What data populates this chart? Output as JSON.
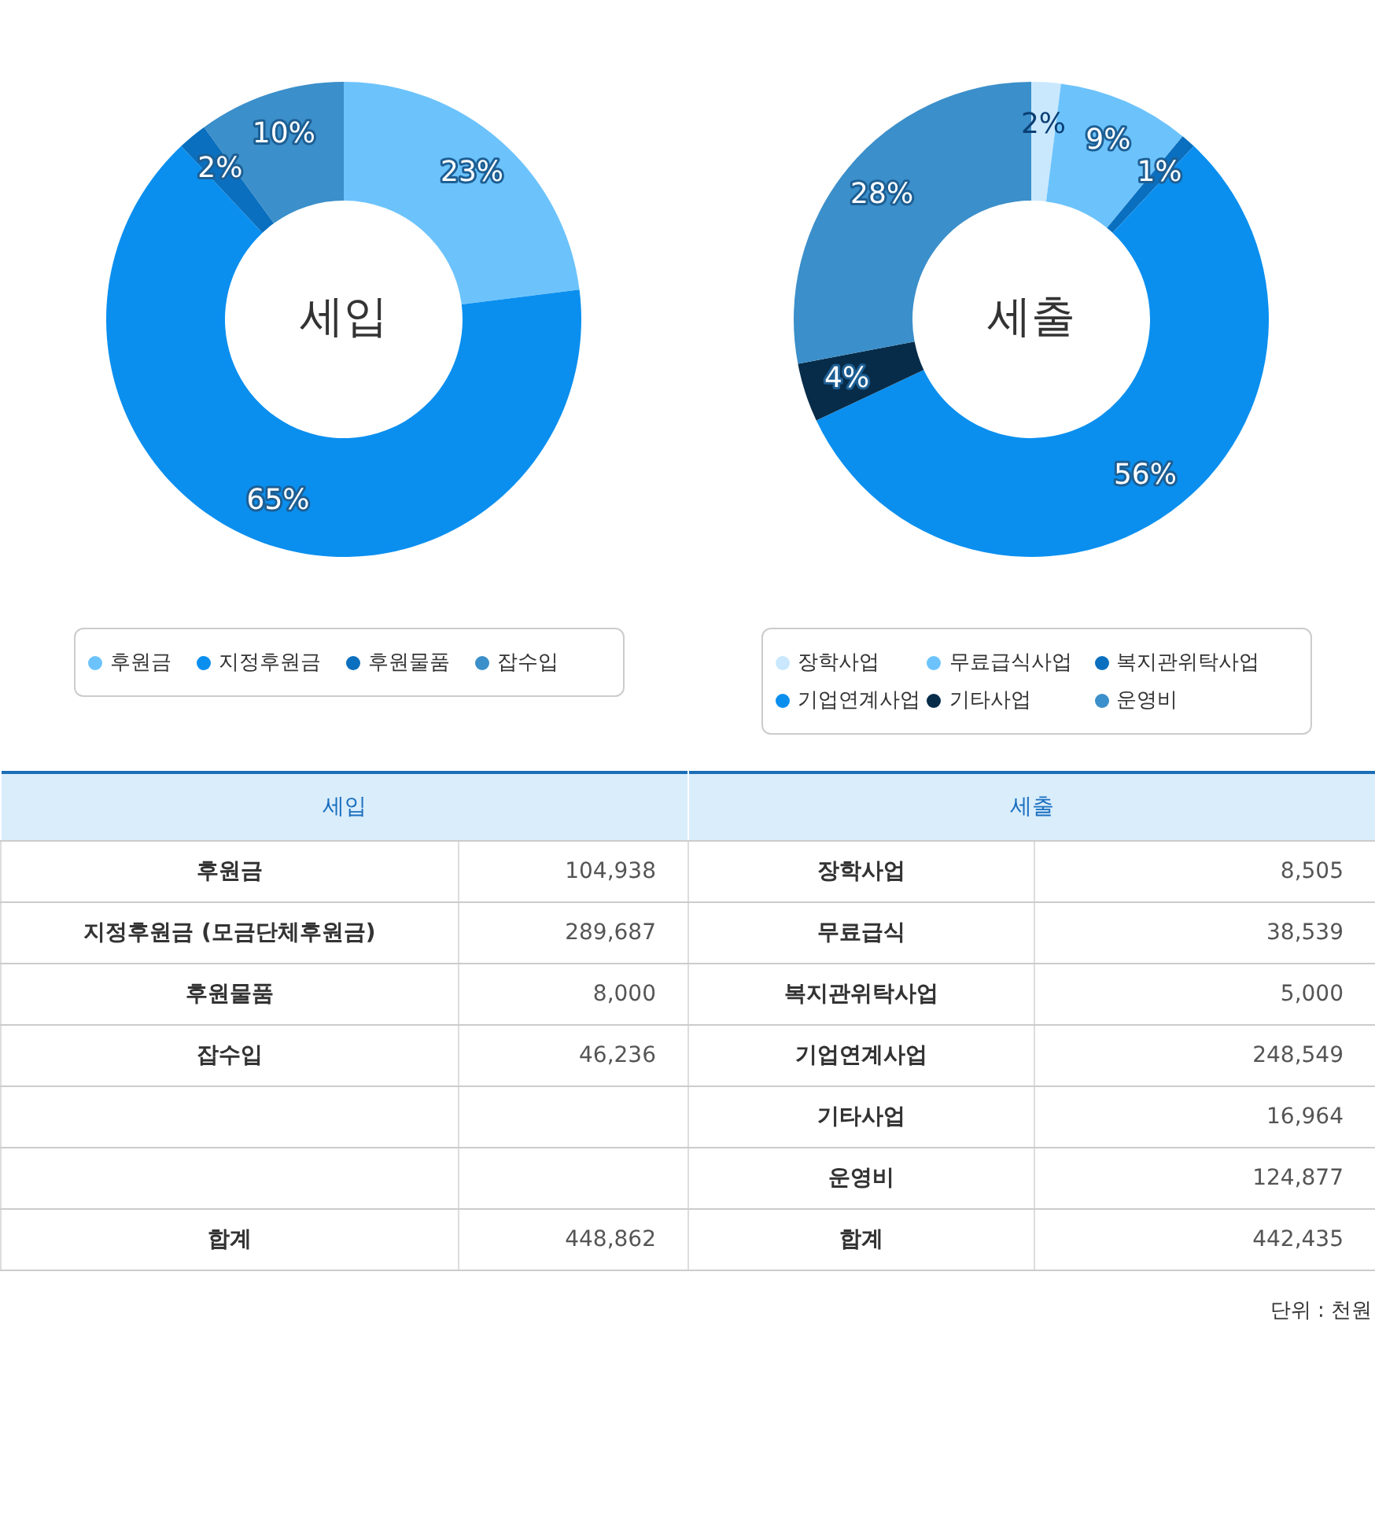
{
  "chart_data": [
    {
      "type": "donut",
      "title": "세입",
      "categories": [
        "후원금",
        "지정후원금",
        "후원물품",
        "잡수입"
      ],
      "values": [
        23,
        65,
        2,
        10
      ],
      "colors": [
        "#6cc3fc",
        "#0a8fef",
        "#0a6fbf",
        "#3b8fca"
      ],
      "value_labels": [
        "23%",
        "65%",
        "2%",
        "10%"
      ],
      "legend": "bottom"
    },
    {
      "type": "donut",
      "title": "세출",
      "categories": [
        "장학사업",
        "무료급식사업",
        "복지관위탁사업",
        "기업연계사업",
        "기타사업",
        "운영비"
      ],
      "values": [
        2,
        9,
        1,
        56,
        4,
        28
      ],
      "colors": [
        "#c9e8fd",
        "#6cc3fc",
        "#0a6fbf",
        "#0a8fef",
        "#062c4a",
        "#3b8fca"
      ],
      "value_labels": [
        "2%",
        "9%",
        "1%",
        "56%",
        "4%",
        "28%"
      ],
      "legend": "bottom"
    },
    {
      "type": "other",
      "title": "세입",
      "categories": [
        "후원금",
        "지정후원금 (모금단체후원금)",
        "후원물품",
        "잡수입"
      ],
      "value_labels": [
        "104,938",
        "289,687",
        "8,000",
        "46,236"
      ],
      "totals": [
        "448,862"
      ],
      "annotations": [
        "합계"
      ]
    },
    {
      "type": "other",
      "title": "세출",
      "categories": [
        "장학사업",
        "무료급식",
        "복지관위탁사업",
        "기업연계사업",
        "기타사업",
        "운영비"
      ],
      "value_labels": [
        "8,505",
        "38,539",
        "5,000",
        "248,549",
        "16,964",
        "124,877"
      ],
      "totals": [
        "442,435"
      ],
      "annotations": [
        "합계",
        "단위 : 천원"
      ]
    }
  ]
}
